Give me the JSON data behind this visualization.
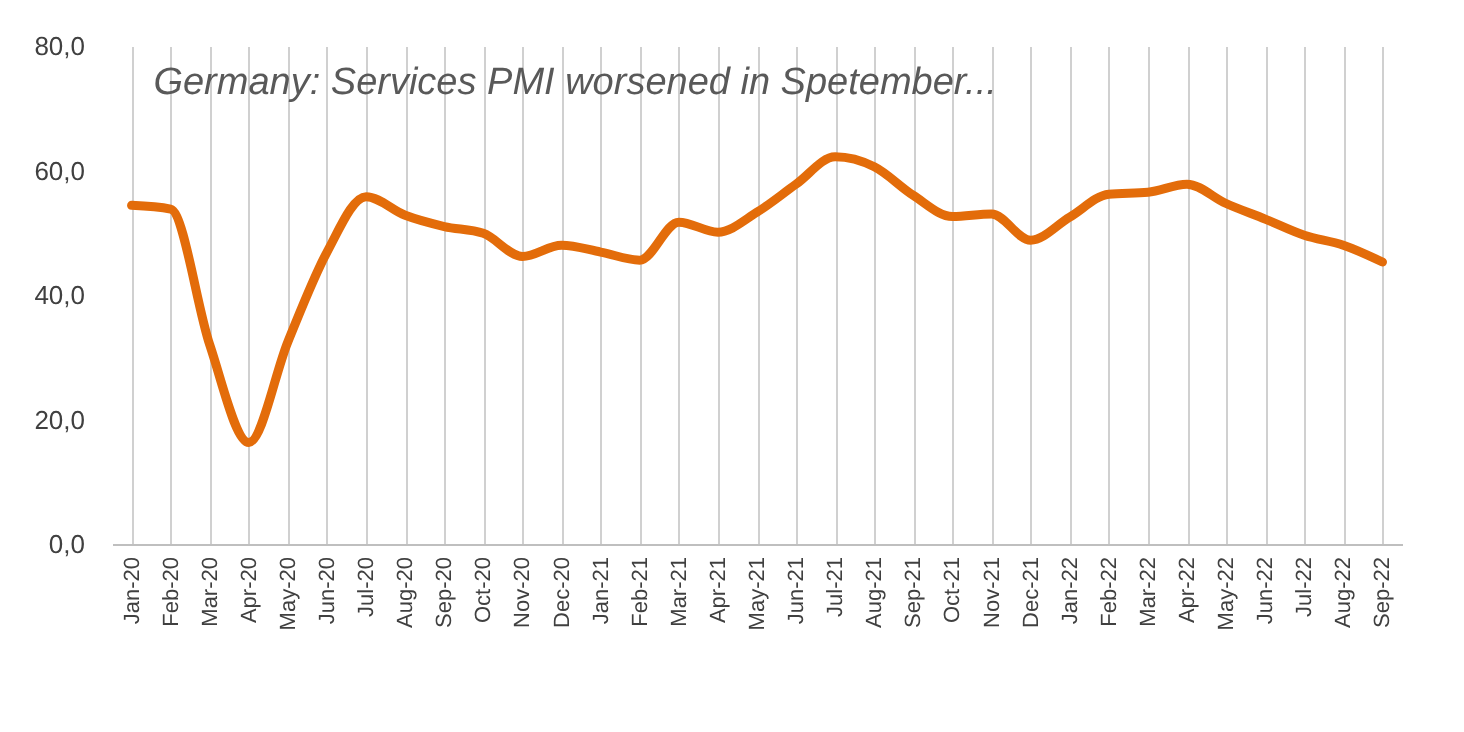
{
  "chart_data": {
    "type": "line",
    "title": "Germany: Services PMI worsened in Spetember...",
    "categories": [
      "Jan-20",
      "Feb-20",
      "Mar-20",
      "Apr-20",
      "May-20",
      "Jun-20",
      "Jul-20",
      "Aug-20",
      "Sep-20",
      "Oct-20",
      "Nov-20",
      "Dec-20",
      "Jan-21",
      "Feb-21",
      "Mar-21",
      "Apr-21",
      "May-21",
      "Jun-21",
      "Jul-21",
      "Aug-21",
      "Sep-21",
      "Oct-21",
      "Nov-21",
      "Dec-21",
      "Jan-22",
      "Feb-22",
      "Mar-22",
      "Apr-22",
      "May-22",
      "Jun-22",
      "Jul-22",
      "Aug-22",
      "Sep-22"
    ],
    "series": [
      {
        "color": "#e36c0a",
        "values": [
          54.4,
          53.8,
          32.0,
          16.3,
          32.5,
          46.9,
          55.8,
          52.8,
          51.0,
          49.9,
          46.2,
          48.0,
          46.9,
          45.6,
          51.7,
          50.1,
          53.3,
          57.8,
          62.2,
          60.6,
          56.0,
          52.6,
          53.0,
          48.8,
          52.5,
          56.2,
          56.5,
          57.8,
          54.7,
          52.2,
          49.6,
          48.0,
          45.3
        ]
      }
    ],
    "ylim": [
      0,
      80
    ],
    "yticks": [
      {
        "value": 0,
        "label": "0,0"
      },
      {
        "value": 20,
        "label": "20,0"
      },
      {
        "value": 40,
        "label": "40,0"
      },
      {
        "value": 60,
        "label": "60,0"
      },
      {
        "value": 80,
        "label": "80,0"
      }
    ],
    "grid": "x",
    "marker": "none",
    "line_style": "solid"
  }
}
